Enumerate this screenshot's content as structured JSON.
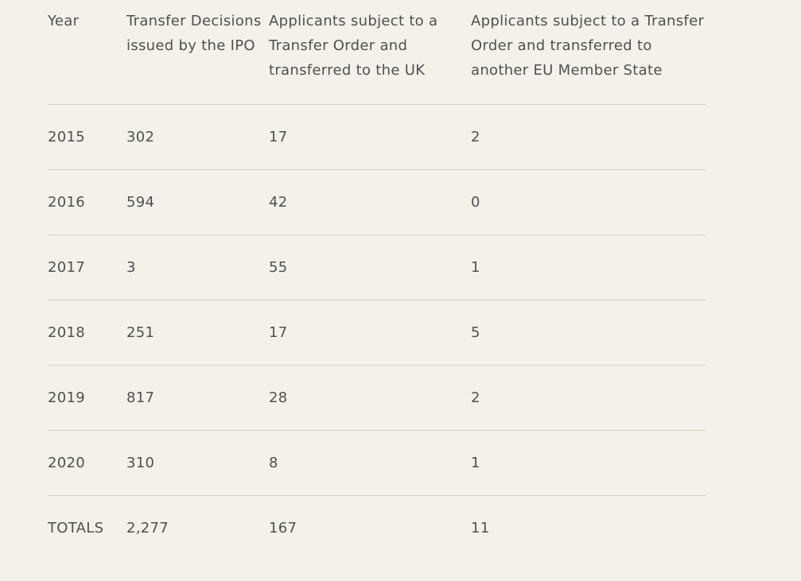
{
  "table": {
    "headers": [
      "Year",
      "Transfer Decisions issued by the IPO",
      "Applicants subject to a Transfer Order and transferred to the UK",
      "Applicants subject to a Transfer Order and transferred to another EU Member State"
    ],
    "rows": [
      [
        "2015",
        "302",
        "17",
        "2"
      ],
      [
        "2016",
        "594",
        "42",
        "0"
      ],
      [
        "2017",
        "3",
        "55",
        "1"
      ],
      [
        "2018",
        "251",
        "17",
        "5"
      ],
      [
        "2019",
        "817",
        "28",
        "2"
      ],
      [
        "2020",
        "310",
        "8",
        "1"
      ],
      [
        "TOTALS",
        "2,277",
        "167",
        "11"
      ]
    ]
  },
  "colors": {
    "background": "#f4f1ea",
    "text": "#505050",
    "rule": "#d6d3c4"
  }
}
